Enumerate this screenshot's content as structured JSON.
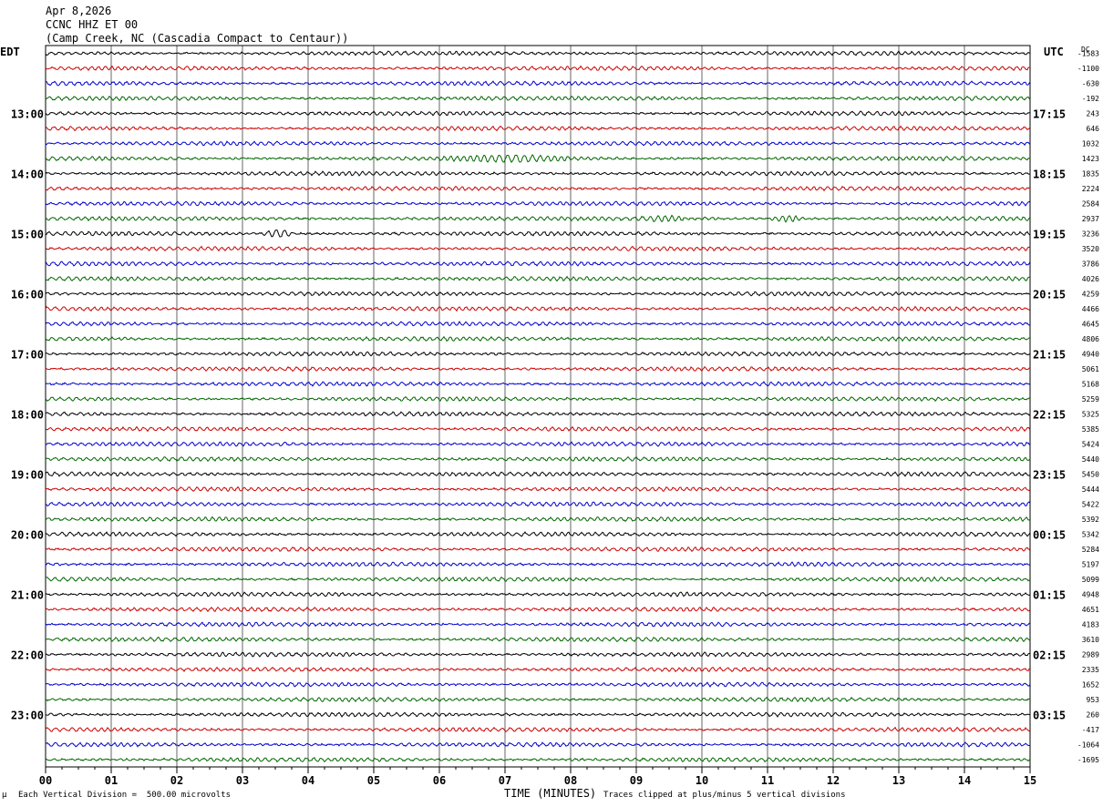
{
  "header": {
    "date": "Apr 8,2026",
    "station": "CCNC HHZ ET 00",
    "location": "(Camp Creek, NC (Cascadia Compact to Centaur))"
  },
  "left_axis_label": "EDT",
  "right_axis_label": "UTC",
  "dc_label": "DC",
  "footer": {
    "scale": "Each Vertical Division =  500.00 microvolts",
    "xlabel": "TIME (MINUTES)",
    "clip": "Traces clipped at plus/minus 5 vertical divisions",
    "corner_mark": "μ"
  },
  "colors": {
    "trace_cycle": [
      "#000000",
      "#cc0000",
      "#0000cc",
      "#006600"
    ],
    "grid": "#000000",
    "background": "#ffffff"
  },
  "chart_data": {
    "type": "line",
    "title": "CCNC HHZ ET 00",
    "xlabel": "TIME (MINUTES)",
    "xlim": [
      0,
      15
    ],
    "x_ticks": [
      "00",
      "01",
      "02",
      "03",
      "04",
      "05",
      "06",
      "07",
      "08",
      "09",
      "10",
      "11",
      "12",
      "13",
      "14",
      "15"
    ],
    "trace_count": 48,
    "trace_minutes": 15,
    "hour_labels_left": [
      {
        "trace": 4,
        "label": "13:00"
      },
      {
        "trace": 8,
        "label": "14:00"
      },
      {
        "trace": 12,
        "label": "15:00"
      },
      {
        "trace": 16,
        "label": "16:00"
      },
      {
        "trace": 20,
        "label": "17:00"
      },
      {
        "trace": 24,
        "label": "18:00"
      },
      {
        "trace": 28,
        "label": "19:00"
      },
      {
        "trace": 32,
        "label": "20:00"
      },
      {
        "trace": 36,
        "label": "21:00"
      },
      {
        "trace": 40,
        "label": "22:00"
      },
      {
        "trace": 44,
        "label": "23:00"
      }
    ],
    "hour_labels_right": [
      {
        "trace": 4,
        "label": "17:15"
      },
      {
        "trace": 8,
        "label": "18:15"
      },
      {
        "trace": 12,
        "label": "19:15"
      },
      {
        "trace": 16,
        "label": "20:15"
      },
      {
        "trace": 20,
        "label": "21:15"
      },
      {
        "trace": 24,
        "label": "22:15"
      },
      {
        "trace": 28,
        "label": "23:15"
      },
      {
        "trace": 32,
        "label": "00:15"
      },
      {
        "trace": 36,
        "label": "01:15"
      },
      {
        "trace": 40,
        "label": "02:15"
      },
      {
        "trace": 44,
        "label": "03:15"
      }
    ],
    "dc_offsets": [
      "-1583",
      "-1100",
      "-630",
      "-192",
      "243",
      "646",
      "1032",
      "1423",
      "1835",
      "2224",
      "2584",
      "2937",
      "3236",
      "3520",
      "3786",
      "4026",
      "4259",
      "4466",
      "4645",
      "4806",
      "4940",
      "5061",
      "5168",
      "5259",
      "5325",
      "5385",
      "5424",
      "5440",
      "5450",
      "5444",
      "5422",
      "5392",
      "5342",
      "5284",
      "5197",
      "5099",
      "4948",
      "4651",
      "4183",
      "3610",
      "2989",
      "2335",
      "1652",
      "953",
      "260",
      "-417",
      "-1064",
      "-1695"
    ],
    "events": [
      {
        "trace": 7,
        "start_min": 6.0,
        "end_min": 8.2,
        "amplitude": 2.2
      },
      {
        "trace": 11,
        "start_min": 9.0,
        "end_min": 9.8,
        "amplitude": 2.0
      },
      {
        "trace": 11,
        "start_min": 11.0,
        "end_min": 11.6,
        "amplitude": 2.6
      },
      {
        "trace": 12,
        "start_min": 3.3,
        "end_min": 3.8,
        "amplitude": 3.5
      }
    ]
  }
}
